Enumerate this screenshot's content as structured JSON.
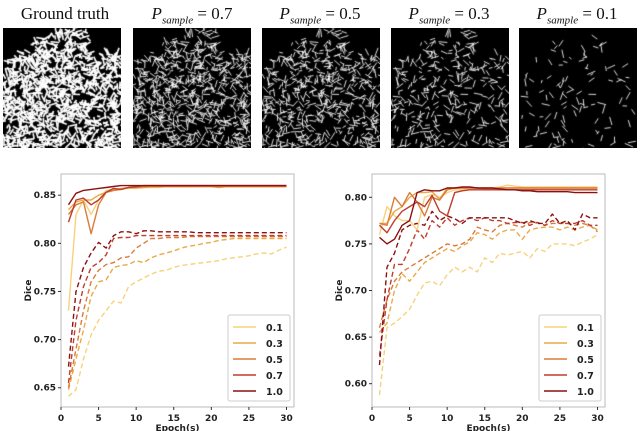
{
  "panels": [
    {
      "title": "Ground truth",
      "density": 1.0
    },
    {
      "symbol": "P",
      "subscript": "sample",
      "value": "= 0.7",
      "density": 0.7
    },
    {
      "symbol": "P",
      "subscript": "sample",
      "value": "= 0.5",
      "density": 0.5
    },
    {
      "symbol": "P",
      "subscript": "sample",
      "value": "= 0.3",
      "density": 0.3
    },
    {
      "symbol": "P",
      "subscript": "sample",
      "value": "= 0.1",
      "density": 0.1
    }
  ],
  "colors": {
    "0.1": "#f7d27c",
    "0.3": "#e8a948",
    "0.5": "#da7b3b",
    "0.7": "#bd3d2e",
    "1.0": "#8a1111"
  },
  "chart_data": [
    {
      "type": "line",
      "xlabel": "Epoch(s)",
      "ylabel": "Dice",
      "xlim": [
        0,
        31
      ],
      "ylim": [
        0.63,
        0.872
      ],
      "xticks": [
        0,
        5,
        10,
        15,
        20,
        25,
        30
      ],
      "yticks": [
        0.65,
        0.7,
        0.75,
        0.8,
        0.85
      ],
      "ytick_labels": [
        "0.65",
        "0.70",
        "0.75",
        "0.80",
        "0.85"
      ],
      "legend": {
        "placement": "lower-right",
        "entries": [
          "0.1",
          "0.3",
          "0.5",
          "0.7",
          "1.0"
        ]
      },
      "x": [
        1,
        2,
        3,
        4,
        5,
        6,
        7,
        8,
        9,
        10,
        11,
        12,
        13,
        14,
        15,
        16,
        17,
        18,
        19,
        20,
        21,
        22,
        23,
        24,
        25,
        26,
        27,
        28,
        29,
        30
      ],
      "series": [
        {
          "name": "0.1",
          "style": "solid",
          "values": [
            0.73,
            0.83,
            0.845,
            0.83,
            0.845,
            0.855,
            0.856,
            0.857,
            0.857,
            0.857,
            0.858,
            0.858,
            0.858,
            0.859,
            0.859,
            0.859,
            0.859,
            0.859,
            0.86,
            0.859,
            0.859,
            0.859,
            0.859,
            0.859,
            0.859,
            0.859,
            0.859,
            0.859,
            0.859,
            0.859
          ]
        },
        {
          "name": "0.3",
          "style": "solid",
          "values": [
            0.835,
            0.843,
            0.845,
            0.845,
            0.85,
            0.853,
            0.855,
            0.857,
            0.858,
            0.858,
            0.858,
            0.859,
            0.859,
            0.859,
            0.859,
            0.859,
            0.859,
            0.859,
            0.859,
            0.859,
            0.858,
            0.859,
            0.859,
            0.859,
            0.859,
            0.859,
            0.859,
            0.859,
            0.859,
            0.859
          ]
        },
        {
          "name": "0.5",
          "style": "solid",
          "values": [
            0.83,
            0.84,
            0.843,
            0.81,
            0.84,
            0.853,
            0.855,
            0.856,
            0.858,
            0.858,
            0.859,
            0.859,
            0.859,
            0.859,
            0.859,
            0.859,
            0.859,
            0.859,
            0.859,
            0.859,
            0.859,
            0.859,
            0.859,
            0.859,
            0.859,
            0.859,
            0.859,
            0.859,
            0.859,
            0.859
          ]
        },
        {
          "name": "0.7",
          "style": "solid",
          "values": [
            0.822,
            0.845,
            0.847,
            0.84,
            0.845,
            0.853,
            0.857,
            0.856,
            0.858,
            0.859,
            0.86,
            0.86,
            0.86,
            0.86,
            0.86,
            0.86,
            0.86,
            0.86,
            0.86,
            0.86,
            0.86,
            0.86,
            0.86,
            0.86,
            0.86,
            0.86,
            0.86,
            0.86,
            0.86,
            0.86
          ]
        },
        {
          "name": "1.0",
          "style": "solid",
          "values": [
            0.84,
            0.852,
            0.855,
            0.856,
            0.857,
            0.858,
            0.859,
            0.86,
            0.86,
            0.86,
            0.86,
            0.86,
            0.86,
            0.86,
            0.86,
            0.86,
            0.86,
            0.86,
            0.86,
            0.86,
            0.86,
            0.86,
            0.86,
            0.86,
            0.86,
            0.86,
            0.86,
            0.86,
            0.86,
            0.86
          ]
        },
        {
          "name": "0.1",
          "style": "dashed",
          "values": [
            0.641,
            0.648,
            0.68,
            0.705,
            0.72,
            0.73,
            0.74,
            0.738,
            0.755,
            0.76,
            0.764,
            0.768,
            0.771,
            0.772,
            0.775,
            0.777,
            0.778,
            0.779,
            0.78,
            0.781,
            0.782,
            0.784,
            0.785,
            0.786,
            0.787,
            0.789,
            0.79,
            0.789,
            0.793,
            0.796
          ]
        },
        {
          "name": "0.3",
          "style": "dashed",
          "values": [
            0.648,
            0.68,
            0.71,
            0.745,
            0.76,
            0.762,
            0.775,
            0.777,
            0.778,
            0.782,
            0.78,
            0.785,
            0.788,
            0.79,
            0.792,
            0.795,
            0.797,
            0.798,
            0.8,
            0.801,
            0.803,
            0.804,
            0.805,
            0.805,
            0.805,
            0.805,
            0.805,
            0.805,
            0.805,
            0.805
          ]
        },
        {
          "name": "0.5",
          "style": "dashed",
          "values": [
            0.65,
            0.69,
            0.73,
            0.76,
            0.772,
            0.778,
            0.78,
            0.785,
            0.786,
            0.795,
            0.8,
            0.805,
            0.805,
            0.806,
            0.806,
            0.806,
            0.807,
            0.807,
            0.807,
            0.807,
            0.807,
            0.807,
            0.807,
            0.807,
            0.807,
            0.807,
            0.807,
            0.807,
            0.807,
            0.807
          ]
        },
        {
          "name": "0.7",
          "style": "dashed",
          "values": [
            0.655,
            0.72,
            0.755,
            0.775,
            0.78,
            0.788,
            0.805,
            0.806,
            0.806,
            0.808,
            0.808,
            0.808,
            0.808,
            0.808,
            0.808,
            0.808,
            0.808,
            0.808,
            0.808,
            0.808,
            0.808,
            0.808,
            0.808,
            0.808,
            0.808,
            0.808,
            0.808,
            0.808,
            0.808,
            0.808
          ]
        },
        {
          "name": "1.0",
          "style": "dashed",
          "values": [
            0.672,
            0.75,
            0.775,
            0.79,
            0.801,
            0.795,
            0.808,
            0.812,
            0.812,
            0.81,
            0.813,
            0.813,
            0.812,
            0.812,
            0.812,
            0.812,
            0.812,
            0.811,
            0.811,
            0.811,
            0.811,
            0.811,
            0.811,
            0.811,
            0.811,
            0.811,
            0.811,
            0.811,
            0.811,
            0.811
          ]
        }
      ]
    },
    {
      "type": "line",
      "xlabel": "Epoch(s)",
      "ylabel": "Dice",
      "xlim": [
        0,
        31
      ],
      "ylim": [
        0.575,
        0.825
      ],
      "xticks": [
        0,
        5,
        10,
        15,
        20,
        25,
        30
      ],
      "yticks": [
        0.6,
        0.65,
        0.7,
        0.75,
        0.8
      ],
      "ytick_labels": [
        "0.60",
        "0.65",
        "0.70",
        "0.75",
        "0.80"
      ],
      "legend": {
        "placement": "lower-right",
        "entries": [
          "0.1",
          "0.3",
          "0.5",
          "0.7",
          "1.0"
        ]
      },
      "x": [
        1,
        2,
        3,
        4,
        5,
        6,
        7,
        8,
        9,
        10,
        11,
        12,
        13,
        14,
        15,
        16,
        17,
        18,
        19,
        20,
        21,
        22,
        23,
        24,
        25,
        26,
        27,
        28,
        29,
        30
      ],
      "series": [
        {
          "name": "0.1",
          "style": "solid",
          "values": [
            0.76,
            0.79,
            0.78,
            0.775,
            0.775,
            0.765,
            0.8,
            0.803,
            0.8,
            0.805,
            0.808,
            0.808,
            0.809,
            0.81,
            0.81,
            0.81,
            0.811,
            0.813,
            0.812,
            0.811,
            0.811,
            0.811,
            0.811,
            0.811,
            0.811,
            0.811,
            0.811,
            0.811,
            0.811,
            0.811
          ]
        },
        {
          "name": "0.3",
          "style": "solid",
          "values": [
            0.772,
            0.772,
            0.785,
            0.79,
            0.8,
            0.805,
            0.805,
            0.806,
            0.798,
            0.81,
            0.81,
            0.81,
            0.81,
            0.81,
            0.81,
            0.81,
            0.81,
            0.81,
            0.81,
            0.81,
            0.81,
            0.81,
            0.81,
            0.81,
            0.81,
            0.81,
            0.81,
            0.81,
            0.81,
            0.81
          ]
        },
        {
          "name": "0.5",
          "style": "solid",
          "values": [
            0.772,
            0.77,
            0.8,
            0.79,
            0.805,
            0.795,
            0.78,
            0.8,
            0.797,
            0.808,
            0.81,
            0.81,
            0.81,
            0.81,
            0.809,
            0.809,
            0.81,
            0.81,
            0.81,
            0.81,
            0.81,
            0.81,
            0.81,
            0.81,
            0.81,
            0.81,
            0.81,
            0.81,
            0.81,
            0.81
          ]
        },
        {
          "name": "0.7",
          "style": "solid",
          "values": [
            0.77,
            0.762,
            0.775,
            0.785,
            0.79,
            0.795,
            0.79,
            0.802,
            0.785,
            0.78,
            0.805,
            0.807,
            0.808,
            0.808,
            0.808,
            0.808,
            0.808,
            0.808,
            0.808,
            0.808,
            0.808,
            0.808,
            0.808,
            0.808,
            0.808,
            0.808,
            0.808,
            0.808,
            0.808,
            0.808
          ]
        },
        {
          "name": "1.0",
          "style": "solid",
          "values": [
            0.757,
            0.75,
            0.755,
            0.77,
            0.775,
            0.805,
            0.808,
            0.807,
            0.807,
            0.81,
            0.81,
            0.811,
            0.811,
            0.81,
            0.81,
            0.81,
            0.809,
            0.808,
            0.808,
            0.807,
            0.807,
            0.806,
            0.806,
            0.806,
            0.806,
            0.806,
            0.805,
            0.805,
            0.805,
            0.805
          ]
        },
        {
          "name": "0.1",
          "style": "dashed",
          "values": [
            0.588,
            0.66,
            0.665,
            0.672,
            0.68,
            0.695,
            0.708,
            0.71,
            0.705,
            0.717,
            0.725,
            0.72,
            0.725,
            0.72,
            0.735,
            0.73,
            0.74,
            0.738,
            0.74,
            0.742,
            0.735,
            0.745,
            0.742,
            0.75,
            0.75,
            0.75,
            0.748,
            0.752,
            0.755,
            0.76
          ]
        },
        {
          "name": "0.3",
          "style": "dashed",
          "values": [
            0.655,
            0.665,
            0.7,
            0.718,
            0.71,
            0.72,
            0.73,
            0.735,
            0.74,
            0.745,
            0.742,
            0.748,
            0.752,
            0.762,
            0.76,
            0.755,
            0.762,
            0.765,
            0.765,
            0.755,
            0.765,
            0.767,
            0.768,
            0.768,
            0.765,
            0.768,
            0.765,
            0.768,
            0.77,
            0.765
          ]
        },
        {
          "name": "0.5",
          "style": "dashed",
          "values": [
            0.66,
            0.69,
            0.71,
            0.72,
            0.725,
            0.73,
            0.735,
            0.74,
            0.745,
            0.75,
            0.748,
            0.75,
            0.755,
            0.768,
            0.765,
            0.763,
            0.77,
            0.772,
            0.77,
            0.768,
            0.773,
            0.773,
            0.77,
            0.772,
            0.772,
            0.772,
            0.77,
            0.772,
            0.77,
            0.763
          ]
        },
        {
          "name": "0.7",
          "style": "dashed",
          "values": [
            0.63,
            0.69,
            0.728,
            0.728,
            0.745,
            0.765,
            0.755,
            0.775,
            0.768,
            0.778,
            0.77,
            0.775,
            0.778,
            0.775,
            0.778,
            0.775,
            0.775,
            0.772,
            0.773,
            0.773,
            0.77,
            0.773,
            0.77,
            0.775,
            0.772,
            0.772,
            0.772,
            0.775,
            0.77,
            0.77
          ]
        },
        {
          "name": "1.0",
          "style": "dashed",
          "values": [
            0.62,
            0.725,
            0.74,
            0.765,
            0.77,
            0.772,
            0.77,
            0.785,
            0.775,
            0.78,
            0.777,
            0.772,
            0.778,
            0.778,
            0.778,
            0.778,
            0.778,
            0.778,
            0.775,
            0.772,
            0.775,
            0.772,
            0.772,
            0.782,
            0.772,
            0.775,
            0.765,
            0.782,
            0.778,
            0.778
          ]
        }
      ]
    }
  ]
}
